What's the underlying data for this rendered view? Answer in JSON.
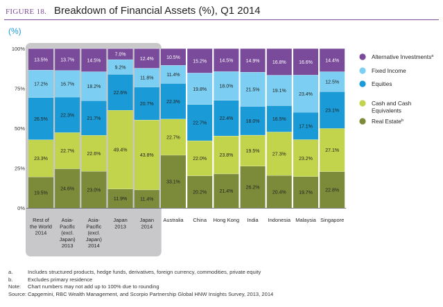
{
  "figure": {
    "label": "FIGURE 18.",
    "title": "Breakdown of Financial Assets (%), Q1 2014"
  },
  "unit_label": "(%)",
  "colors": {
    "real_estate": "#7b8b3a",
    "cash": "#c2d44c",
    "equities": "#1a9bd7",
    "fixed_income": "#7ccff2",
    "alternative": "#7b4b9b",
    "highlight": "#c8c8ca"
  },
  "chart_data": {
    "type": "bar",
    "stacked": true,
    "title": "Breakdown of Financial Assets (%), Q1 2014",
    "ylabel": "(%)",
    "ylim": [
      0,
      100
    ],
    "yticks": [
      "0%",
      "25%",
      "50%",
      "75%",
      "100%"
    ],
    "categories": [
      [
        "Rest of",
        "the World",
        "2014"
      ],
      [
        "Asia-",
        "Pacific",
        "(excl.",
        "Japan)",
        "2013"
      ],
      [
        "Asia-",
        "Pacific",
        "(excl.",
        "Japan)",
        "2014"
      ],
      [
        "Japan",
        "2013"
      ],
      [
        "Japan",
        "2014"
      ],
      [
        "Australia"
      ],
      [
        "China"
      ],
      [
        "Hong Kong"
      ],
      [
        "India"
      ],
      [
        "Indonesia"
      ],
      [
        "Malaysia"
      ],
      [
        "Singapore"
      ]
    ],
    "highlighted_categories": [
      0,
      1,
      2,
      3,
      4
    ],
    "series": [
      {
        "name": "Real Estate",
        "legend": "Real Estate",
        "sup": "b",
        "color_key": "real_estate",
        "values": [
          19.5,
          24.6,
          23.0,
          11.9,
          11.4,
          33.1,
          20.2,
          21.4,
          26.2,
          20.4,
          19.7,
          22.8
        ],
        "labels": [
          "19.5%",
          "24.6%",
          "23.0%",
          "11.9%",
          "11.4%",
          "33.1%",
          "20.2%",
          "21.4%",
          "26.2%",
          "20.4%",
          "19.7%",
          "22.8%"
        ]
      },
      {
        "name": "Cash and Cash Equivalents",
        "legend": [
          "Cash and Cash",
          "Equivalents"
        ],
        "sup": "",
        "color_key": "cash",
        "values": [
          23.3,
          22.7,
          22.6,
          49.4,
          43.8,
          22.7,
          22.0,
          23.8,
          19.5,
          27.3,
          23.2,
          27.1
        ],
        "labels": [
          "23.3%",
          "22.7%",
          "22.6%",
          "49.4%",
          "43.8%",
          "22.7%",
          "22.0%",
          "23.8%",
          "19.5%",
          "27.3%",
          "23.2%",
          "27.1%"
        ]
      },
      {
        "name": "Equities",
        "legend": "Equities",
        "sup": "",
        "color_key": "equities",
        "values": [
          26.5,
          22.3,
          21.7,
          22.6,
          20.7,
          22.3,
          22.7,
          22.4,
          18.0,
          16.5,
          17.1,
          23.1
        ],
        "labels": [
          "26.5%",
          "22.3%",
          "21.7%",
          "22.6%",
          "20.7%",
          "22.3%",
          "22.7%",
          "22.4%",
          "18.0%",
          "16.5%",
          "17.1%",
          "23.1%"
        ]
      },
      {
        "name": "Fixed Income",
        "legend": "Fixed Income",
        "sup": "",
        "color_key": "fixed_income",
        "values": [
          17.2,
          16.7,
          18.2,
          9.2,
          11.8,
          11.4,
          19.8,
          18.0,
          21.5,
          19.1,
          23.4,
          12.5
        ],
        "labels": [
          "17.2%",
          "16.7%",
          "18.2%",
          "9.2%",
          "11.8%",
          "11.4%",
          "19.8%",
          "18.0%",
          "21.5%",
          "19.1%",
          "23.4%",
          "12.5%"
        ]
      },
      {
        "name": "Alternative Investments",
        "legend": "Alternative Investments",
        "sup": "a",
        "color_key": "alternative",
        "values": [
          13.5,
          13.7,
          14.5,
          7.0,
          12.4,
          10.5,
          15.2,
          14.5,
          14.9,
          16.8,
          16.6,
          14.4
        ],
        "labels": [
          "13.5%",
          "13.7%",
          "14.5%",
          "7.0%",
          "12.4%",
          "10.5%",
          "15.2%",
          "14.5%",
          "14.9%",
          "16.8%",
          "16.6%",
          "14.4%"
        ]
      }
    ],
    "legend_order": [
      4,
      3,
      2,
      1,
      0
    ],
    "legend_position": "right"
  },
  "footnotes": [
    {
      "key": "a.",
      "text": "Includes structured products, hedge funds, derivatives, foreign currency, commodities, private equity"
    },
    {
      "key": "b.",
      "text": "Excludes primary residence"
    },
    {
      "key": "Note:",
      "text": "Chart numbers may not add up to 100% due to rounding"
    },
    {
      "key": "Source:",
      "text": "Capgemini, RBC Wealth Management, and Scorpio Partnership Global HNW Insights Survey, 2013, 2014"
    }
  ]
}
